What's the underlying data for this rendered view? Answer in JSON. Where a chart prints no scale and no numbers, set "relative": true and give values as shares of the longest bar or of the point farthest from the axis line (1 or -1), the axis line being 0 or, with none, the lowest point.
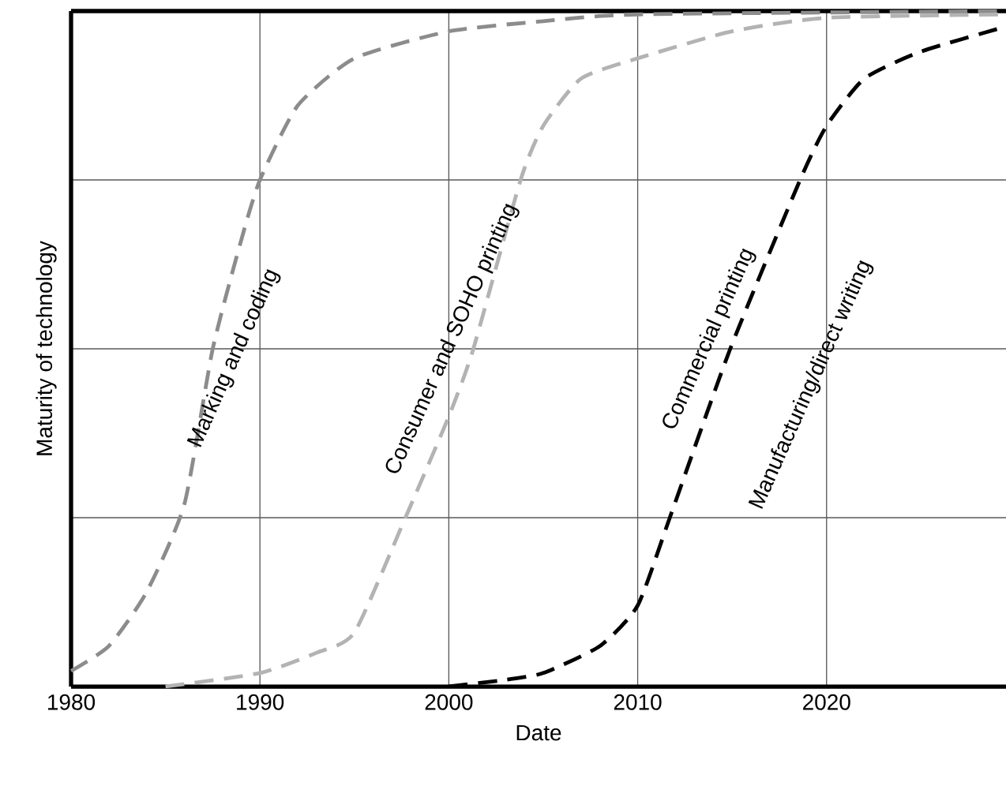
{
  "chart_data": {
    "type": "line",
    "xlabel": "Date",
    "ylabel": "Maturity of technology",
    "relative": true,
    "xlim": [
      1980,
      2029.5
    ],
    "xticks": [
      1980,
      1990,
      2000,
      2010,
      2020
    ],
    "grid": true,
    "line_style": "dashed",
    "series": [
      {
        "name": "Marking and coding",
        "color": "#8c8c8c",
        "x": [
          1980,
          1982,
          1984,
          1986,
          1987.5,
          1989,
          1990,
          1992,
          1995,
          2000,
          2005,
          2010,
          2029.5
        ],
        "values": [
          0.023,
          0.06,
          0.14,
          0.27,
          0.5,
          0.66,
          0.75,
          0.86,
          0.93,
          0.97,
          0.985,
          0.995,
          1.0
        ]
      },
      {
        "name": "Consumer and SOHO printing",
        "color": "#b3b3b3",
        "x": [
          1985,
          1990,
          1993,
          1995,
          1997.7,
          2000,
          2001.3,
          2003.8,
          2005,
          2007,
          2010,
          2015,
          2020,
          2029.5
        ],
        "values": [
          0.0,
          0.02,
          0.05,
          0.08,
          0.25,
          0.4,
          0.5,
          0.75,
          0.83,
          0.9,
          0.93,
          0.97,
          0.99,
          0.995
        ]
      },
      {
        "name": "Commercial printing",
        "color": "#000000",
        "x": [
          2000,
          2003,
          2005,
          2008,
          2010,
          2011.7,
          2014.9,
          2018.6,
          2020,
          2022,
          2025,
          2029.5
        ],
        "values": [
          0.0,
          0.01,
          0.02,
          0.06,
          0.12,
          0.25,
          0.5,
          0.75,
          0.83,
          0.9,
          0.94,
          0.977
        ]
      }
    ],
    "annotations": [
      "Manufacturing/direct writing"
    ]
  }
}
